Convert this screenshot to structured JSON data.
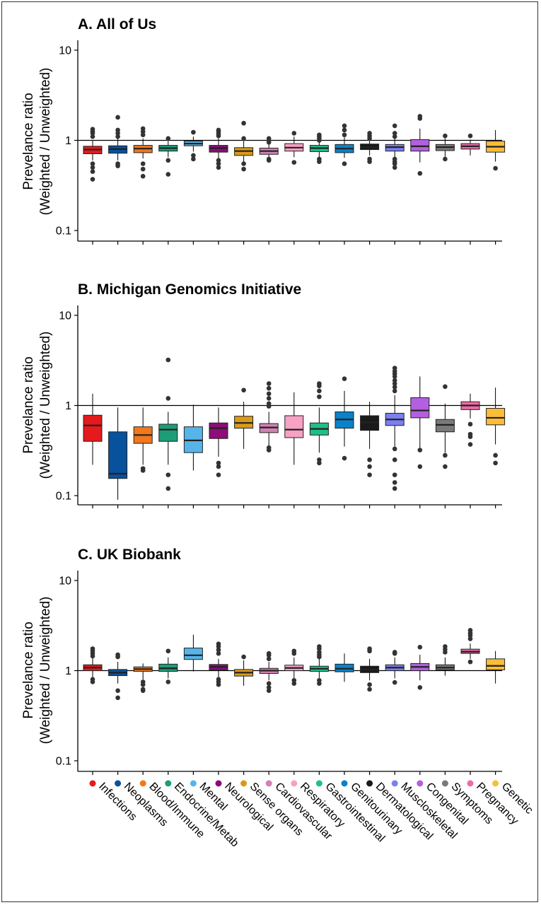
{
  "chart_data": [
    {
      "type": "box",
      "title": "A. All of Us",
      "ylabel": [
        "Prevelance ratio",
        "(Weighted / Unweighted)"
      ],
      "yscale": "log",
      "ylim": [
        0.1,
        10
      ],
      "yticks": [
        {
          "v": 10,
          "label": "10"
        },
        {
          "v": 1,
          "label": "1"
        },
        {
          "v": 0.1,
          "label": "0.1"
        }
      ],
      "reference_line": 1,
      "boxes": [
        {
          "category": "Infections",
          "whisker_low": 0.6,
          "q1": 0.71,
          "median": 0.79,
          "q3": 0.86,
          "whisker_high": 1.0,
          "outliers": [
            1.33,
            1.25,
            1.2,
            1.1,
            0.55,
            0.5,
            0.45,
            0.37
          ]
        },
        {
          "category": "Neoplasms",
          "whisker_low": 0.6,
          "q1": 0.72,
          "median": 0.8,
          "q3": 0.87,
          "whisker_high": 1.05,
          "outliers": [
            1.8,
            1.3,
            1.2,
            1.1,
            0.55,
            0.52
          ]
        },
        {
          "category": "Blood/Immune",
          "whisker_low": 0.63,
          "q1": 0.73,
          "median": 0.81,
          "q3": 0.88,
          "whisker_high": 1.05,
          "outliers": [
            1.35,
            1.25,
            1.15,
            0.55,
            0.48,
            0.4
          ]
        },
        {
          "category": "Endocrine/Metab",
          "whisker_low": 0.65,
          "q1": 0.76,
          "median": 0.82,
          "q3": 0.88,
          "whisker_high": 1.0,
          "outliers": [
            1.05,
            0.6,
            0.42
          ]
        },
        {
          "category": "Mental",
          "whisker_low": 0.75,
          "q1": 0.87,
          "median": 0.92,
          "q3": 0.98,
          "whisker_high": 1.1,
          "outliers": [
            1.23,
            0.68,
            0.62
          ]
        },
        {
          "category": "Neurological",
          "whisker_low": 0.62,
          "q1": 0.74,
          "median": 0.82,
          "q3": 0.88,
          "whisker_high": 1.05,
          "outliers": [
            1.3,
            1.25,
            1.18,
            1.12,
            0.6,
            0.55,
            0.5
          ]
        },
        {
          "category": "Sense organs",
          "whisker_low": 0.58,
          "q1": 0.68,
          "median": 0.76,
          "q3": 0.83,
          "whisker_high": 1.02,
          "outliers": [
            1.55,
            1.05,
            0.55,
            0.48
          ]
        },
        {
          "category": "Cardiovascular",
          "whisker_low": 0.63,
          "q1": 0.7,
          "median": 0.76,
          "q3": 0.82,
          "whisker_high": 0.96,
          "outliers": [
            1.05,
            1.0,
            0.95,
            0.62,
            0.6
          ]
        },
        {
          "category": "Respiratory",
          "whisker_low": 0.65,
          "q1": 0.76,
          "median": 0.83,
          "q3": 0.92,
          "whisker_high": 1.1,
          "outliers": [
            1.2,
            0.57
          ]
        },
        {
          "category": "Gastrointestinal",
          "whisker_low": 0.65,
          "q1": 0.75,
          "median": 0.82,
          "q3": 0.88,
          "whisker_high": 1.0,
          "outliers": [
            1.15,
            1.1,
            1.05,
            1.0,
            0.62,
            0.58
          ]
        },
        {
          "category": "Genitourinary",
          "whisker_low": 0.64,
          "q1": 0.73,
          "median": 0.81,
          "q3": 0.9,
          "whisker_high": 1.08,
          "outliers": [
            1.45,
            1.3,
            1.15,
            0.55
          ]
        },
        {
          "category": "Dermatological",
          "whisker_low": 0.68,
          "q1": 0.79,
          "median": 0.84,
          "q3": 0.91,
          "whisker_high": 1.05,
          "outliers": [
            1.2,
            1.12,
            1.05,
            0.62,
            0.58
          ]
        },
        {
          "category": "Muscloskeletal",
          "whisker_low": 0.62,
          "q1": 0.76,
          "median": 0.84,
          "q3": 0.9,
          "whisker_high": 1.05,
          "outliers": [
            1.45,
            1.2,
            1.1,
            0.62,
            0.58,
            0.55,
            0.5
          ]
        },
        {
          "category": "Congenital",
          "whisker_low": 0.57,
          "q1": 0.76,
          "median": 0.86,
          "q3": 1.02,
          "whisker_high": 1.35,
          "outliers": [
            1.85,
            1.75,
            0.43
          ]
        },
        {
          "category": "Symptoms",
          "whisker_low": 0.66,
          "q1": 0.77,
          "median": 0.84,
          "q3": 0.9,
          "whisker_high": 1.05,
          "outliers": [
            1.12,
            0.62
          ]
        },
        {
          "category": "Pregnancy",
          "whisker_low": 0.68,
          "q1": 0.8,
          "median": 0.86,
          "q3": 0.92,
          "whisker_high": 1.02,
          "outliers": [
            1.12
          ]
        },
        {
          "category": "Genetic",
          "whisker_low": 0.58,
          "q1": 0.74,
          "median": 0.85,
          "q3": 0.98,
          "whisker_high": 1.3,
          "outliers": [
            0.49
          ]
        }
      ]
    },
    {
      "type": "box",
      "title": "B. Michigan Genomics Initiative",
      "ylabel": [
        "Prevelance ratio",
        "(Weighted / Unweighted)"
      ],
      "yscale": "log",
      "ylim": [
        0.1,
        10
      ],
      "yticks": [
        {
          "v": 10,
          "label": "10"
        },
        {
          "v": 1,
          "label": "1"
        },
        {
          "v": 0.1,
          "label": "0.1"
        }
      ],
      "reference_line": 1,
      "boxes": [
        {
          "category": "Infections",
          "whisker_low": 0.22,
          "q1": 0.4,
          "median": 0.6,
          "q3": 0.78,
          "whisker_high": 1.35,
          "outliers": []
        },
        {
          "category": "Neoplasms",
          "whisker_low": 0.09,
          "q1": 0.155,
          "median": 0.175,
          "q3": 0.51,
          "whisker_high": 0.95,
          "outliers": []
        },
        {
          "category": "Blood/Immune",
          "whisker_low": 0.22,
          "q1": 0.38,
          "median": 0.47,
          "q3": 0.58,
          "whisker_high": 0.95,
          "outliers": [
            0.2,
            0.19
          ]
        },
        {
          "category": "Endocrine/Metab",
          "whisker_low": 0.22,
          "q1": 0.4,
          "median": 0.54,
          "q3": 0.62,
          "whisker_high": 0.85,
          "outliers": [
            3.2,
            1.2,
            0.17,
            0.12
          ]
        },
        {
          "category": "Mental",
          "whisker_low": 0.19,
          "q1": 0.3,
          "median": 0.41,
          "q3": 0.58,
          "whisker_high": 1.02,
          "outliers": []
        },
        {
          "category": "Neurological",
          "whisker_low": 0.27,
          "q1": 0.43,
          "median": 0.56,
          "q3": 0.64,
          "whisker_high": 0.95,
          "outliers": [
            0.23,
            0.21,
            0.17
          ]
        },
        {
          "category": "Sense organs",
          "whisker_low": 0.33,
          "q1": 0.56,
          "median": 0.64,
          "q3": 0.76,
          "whisker_high": 1.1,
          "outliers": [
            1.48
          ]
        },
        {
          "category": "Cardiovascular",
          "whisker_low": 0.36,
          "q1": 0.5,
          "median": 0.57,
          "q3": 0.63,
          "whisker_high": 0.85,
          "outliers": [
            1.75,
            1.55,
            1.35,
            1.2,
            1.05,
            0.98,
            0.34,
            0.32
          ]
        },
        {
          "category": "Respiratory",
          "whisker_low": 0.22,
          "q1": 0.44,
          "median": 0.54,
          "q3": 0.77,
          "whisker_high": 1.4,
          "outliers": []
        },
        {
          "category": "Gastrointestinal",
          "whisker_low": 0.3,
          "q1": 0.47,
          "median": 0.55,
          "q3": 0.64,
          "whisker_high": 0.95,
          "outliers": [
            1.75,
            1.65,
            1.45,
            1.25,
            0.25,
            0.23
          ]
        },
        {
          "category": "Genitourinary",
          "whisker_low": 0.35,
          "q1": 0.56,
          "median": 0.7,
          "q3": 0.85,
          "whisker_high": 1.45,
          "outliers": [
            1.98,
            0.26
          ]
        },
        {
          "category": "Dermatological",
          "whisker_low": 0.33,
          "q1": 0.53,
          "median": 0.65,
          "q3": 0.77,
          "whisker_high": 1.1,
          "outliers": [
            0.25,
            0.21,
            0.17
          ]
        },
        {
          "category": "Muscloskeletal",
          "whisker_low": 0.35,
          "q1": 0.6,
          "median": 0.7,
          "q3": 0.82,
          "whisker_high": 1.3,
          "outliers": [
            2.6,
            2.4,
            2.25,
            2.1,
            1.9,
            1.75,
            1.6,
            1.45,
            0.33,
            0.25,
            0.17,
            0.14,
            0.12
          ]
        },
        {
          "category": "Congenital",
          "whisker_low": 0.33,
          "q1": 0.73,
          "median": 0.88,
          "q3": 1.22,
          "whisker_high": 2.1,
          "outliers": [
            0.32,
            0.21
          ]
        },
        {
          "category": "Symptoms",
          "whisker_low": 0.3,
          "q1": 0.51,
          "median": 0.61,
          "q3": 0.7,
          "whisker_high": 1.05,
          "outliers": [
            1.62,
            0.28,
            0.21
          ]
        },
        {
          "category": "Pregnancy",
          "whisker_low": 0.72,
          "q1": 0.9,
          "median": 1.0,
          "q3": 1.1,
          "whisker_high": 1.35,
          "outliers": [
            0.62,
            0.48,
            0.45,
            0.37
          ]
        },
        {
          "category": "Genetic",
          "whisker_low": 0.37,
          "q1": 0.61,
          "median": 0.73,
          "q3": 0.93,
          "whisker_high": 1.58,
          "outliers": [
            0.28,
            0.23
          ]
        }
      ]
    },
    {
      "type": "box",
      "title": "C. UK Biobank",
      "ylabel": [
        "Prevelance ratio",
        "(Weighted / Unweighted)"
      ],
      "yscale": "log",
      "ylim": [
        0.1,
        10
      ],
      "yticks": [
        {
          "v": 10,
          "label": "10"
        },
        {
          "v": 1,
          "label": "1"
        },
        {
          "v": 0.1,
          "label": "0.1"
        }
      ],
      "reference_line": 1,
      "boxes": [
        {
          "category": "Infections",
          "whisker_low": 0.82,
          "q1": 1.0,
          "median": 1.08,
          "q3": 1.16,
          "whisker_high": 1.4,
          "outliers": [
            1.75,
            1.65,
            1.55,
            1.45,
            0.8,
            0.75
          ]
        },
        {
          "category": "Neoplasms",
          "whisker_low": 0.72,
          "q1": 0.88,
          "median": 0.95,
          "q3": 1.03,
          "whisker_high": 1.25,
          "outliers": [
            1.5,
            1.42,
            0.6,
            0.5
          ]
        },
        {
          "category": "Blood/Immune",
          "whisker_low": 0.8,
          "q1": 0.98,
          "median": 1.04,
          "q3": 1.1,
          "whisker_high": 1.2,
          "outliers": [
            0.75,
            0.7,
            0.62,
            0.6
          ]
        },
        {
          "category": "Endocrine/Metab",
          "whisker_low": 0.82,
          "q1": 0.98,
          "median": 1.06,
          "q3": 1.18,
          "whisker_high": 1.4,
          "outliers": [
            1.65,
            0.75
          ]
        },
        {
          "category": "Mental",
          "whisker_low": 0.98,
          "q1": 1.33,
          "median": 1.48,
          "q3": 1.78,
          "whisker_high": 2.5,
          "outliers": []
        },
        {
          "category": "Neurological",
          "whisker_low": 0.82,
          "q1": 1.02,
          "median": 1.1,
          "q3": 1.17,
          "whisker_high": 1.35,
          "outliers": [
            1.98,
            1.85,
            1.7,
            1.55,
            0.8,
            0.75,
            0.7
          ]
        },
        {
          "category": "Sense organs",
          "whisker_low": 0.68,
          "q1": 0.87,
          "median": 0.95,
          "q3": 1.03,
          "whisker_high": 1.3,
          "outliers": [
            1.42
          ]
        },
        {
          "category": "Cardiovascular",
          "whisker_low": 0.78,
          "q1": 0.93,
          "median": 1.0,
          "q3": 1.06,
          "whisker_high": 1.25,
          "outliers": [
            1.55,
            1.48,
            1.35,
            0.72,
            0.65,
            0.6
          ]
        },
        {
          "category": "Respiratory",
          "whisker_low": 0.82,
          "q1": 1.0,
          "median": 1.07,
          "q3": 1.15,
          "whisker_high": 1.4,
          "outliers": [
            1.65,
            1.55,
            0.78,
            0.72
          ]
        },
        {
          "category": "Gastrointestinal",
          "whisker_low": 0.83,
          "q1": 0.98,
          "median": 1.05,
          "q3": 1.12,
          "whisker_high": 1.35,
          "outliers": [
            1.85,
            1.75,
            1.6,
            1.5,
            1.42,
            0.78,
            0.72
          ]
        },
        {
          "category": "Genitourinary",
          "whisker_low": 0.75,
          "q1": 0.97,
          "median": 1.05,
          "q3": 1.18,
          "whisker_high": 1.55,
          "outliers": []
        },
        {
          "category": "Dermatological",
          "whisker_low": 0.78,
          "q1": 0.95,
          "median": 1.03,
          "q3": 1.12,
          "whisker_high": 1.35,
          "outliers": [
            1.75,
            1.65,
            0.7,
            0.62
          ]
        },
        {
          "category": "Muscloskeletal",
          "whisker_low": 0.82,
          "q1": 1.0,
          "median": 1.08,
          "q3": 1.16,
          "whisker_high": 1.4,
          "outliers": [
            1.6,
            1.55,
            0.74
          ]
        },
        {
          "category": "Congenital",
          "whisker_low": 0.78,
          "q1": 1.0,
          "median": 1.1,
          "q3": 1.2,
          "whisker_high": 1.5,
          "outliers": [
            1.82,
            0.65
          ]
        },
        {
          "category": "Symptoms",
          "whisker_low": 0.88,
          "q1": 1.02,
          "median": 1.08,
          "q3": 1.16,
          "whisker_high": 1.4,
          "outliers": [
            1.85,
            1.72,
            1.6
          ]
        },
        {
          "category": "Pregnancy",
          "whisker_low": 1.35,
          "q1": 1.55,
          "median": 1.62,
          "q3": 1.73,
          "whisker_high": 2.0,
          "outliers": [
            2.8,
            2.6,
            2.45,
            2.25,
            1.25
          ]
        },
        {
          "category": "Genetic",
          "whisker_low": 0.72,
          "q1": 1.02,
          "median": 1.13,
          "q3": 1.35,
          "whisker_high": 1.65,
          "outliers": []
        }
      ]
    }
  ],
  "categories": [
    {
      "name": "Infections",
      "color": "#e41a1c"
    },
    {
      "name": "Neoplasms",
      "color": "#08519c"
    },
    {
      "name": "Blood/Immune",
      "color": "#f0781e"
    },
    {
      "name": "Endocrine/Metab",
      "color": "#1b9e77"
    },
    {
      "name": "Mental",
      "color": "#56b4e9"
    },
    {
      "name": "Neurological",
      "color": "#8e0b7a"
    },
    {
      "name": "Sense organs",
      "color": "#d99a1a"
    },
    {
      "name": "Cardiovascular",
      "color": "#d282b3"
    },
    {
      "name": "Respiratory",
      "color": "#f7a1c4"
    },
    {
      "name": "Gastrointestinal",
      "color": "#1fbf85"
    },
    {
      "name": "Genitourinary",
      "color": "#0a82c8"
    },
    {
      "name": "Dermatological",
      "color": "#1a1a1a"
    },
    {
      "name": "Muscloskeletal",
      "color": "#7b7ff0"
    },
    {
      "name": "Congenital",
      "color": "#b45fe0"
    },
    {
      "name": "Symptoms",
      "color": "#7a7a7a"
    },
    {
      "name": "Pregnancy",
      "color": "#f06aa8"
    },
    {
      "name": "Genetic",
      "color": "#f9bd3a"
    }
  ]
}
